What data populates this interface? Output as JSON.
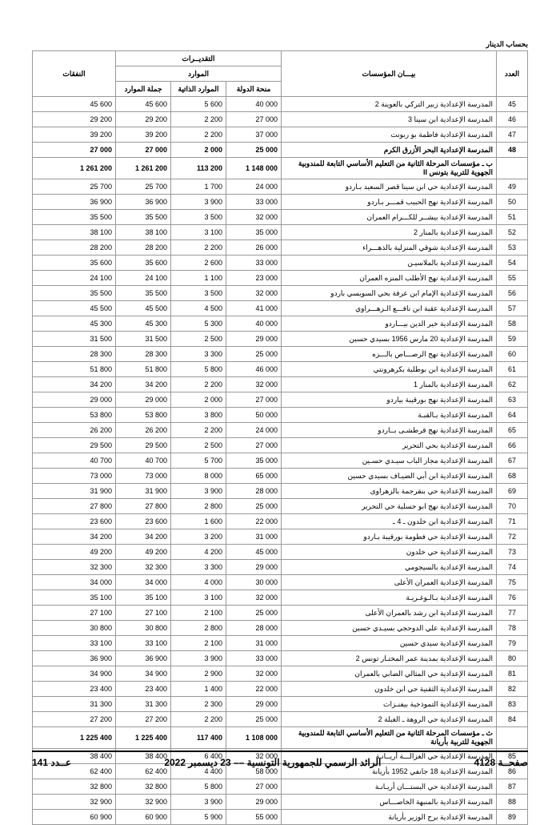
{
  "unitLabel": "بحساب الدينار",
  "headers": {
    "estimates": "التقديــرات",
    "expenses": "النفقات",
    "resources": "الموارد",
    "totalRes": "جملة الموارد",
    "selfRes": "الموارد الذاتية",
    "stateGrant": "منحة الدولة",
    "institutions": "بيـــان المؤسسات",
    "num": "العدد"
  },
  "rows": [
    {
      "n": "45",
      "d": "المدرسة الإعدادية زبير التركي بالعوينة 2",
      "s": "40 000",
      "r": "5 600",
      "t": "45 600",
      "e": "45 600"
    },
    {
      "n": "46",
      "d": "المدرسة الإعدادية ابن سينا 3",
      "s": "27 000",
      "r": "2 200",
      "t": "29 200",
      "e": "29 200"
    },
    {
      "n": "47",
      "d": "المدرسة الإعدادية فاطمة بو ربونت",
      "s": "37 000",
      "r": "2 200",
      "t": "39 200",
      "e": "39 200"
    },
    {
      "n": "48",
      "d": "المدرسة الإعدادية البحر الأزرق الكرم",
      "s": "25 000",
      "r": "2 000",
      "t": "27 000",
      "e": "27 000",
      "b": true
    },
    {
      "n": "",
      "d": "ب ـ مؤسسات المرحلة الثانية من التعليم الأساسي التابعة للمندوبية الجهوية للتربية بتونس II",
      "s": "1 148 000",
      "r": "113 200",
      "t": "1 261 200",
      "e": "1 261 200",
      "b": true
    },
    {
      "n": "49",
      "d": "المدرسة الإعدادية حي ابن سينا قصر السعيد بـاردو",
      "s": "24 000",
      "r": "1 700",
      "t": "25 700",
      "e": "25 700"
    },
    {
      "n": "50",
      "d": "المدرسة الإعدادية نهج الحبيب قمـــر بـاردو",
      "s": "33 000",
      "r": "3 900",
      "t": "36 900",
      "e": "36 900"
    },
    {
      "n": "51",
      "d": "المدرسة الإعدادية بيشــر للكـــرام العمران",
      "s": "32 000",
      "r": "3 500",
      "t": "35 500",
      "e": "35 500"
    },
    {
      "n": "52",
      "d": "المدرسة الإعدادية بالمنار 2",
      "s": "35 000",
      "r": "3 100",
      "t": "38 100",
      "e": "38 100"
    },
    {
      "n": "53",
      "d": "المدرسة الإعدادية شوقي المنزلية بالذهـــراء",
      "s": "26 000",
      "r": "2 200",
      "t": "28 200",
      "e": "28 200"
    },
    {
      "n": "54",
      "d": "المدرسة الإعدادية بالملاسيـن",
      "s": "33 000",
      "r": "2 600",
      "t": "35 600",
      "e": "35 600"
    },
    {
      "n": "55",
      "d": "المدرسة الإعدادية نهج الأطلب المنزه العمران",
      "s": "23 000",
      "r": "1 100",
      "t": "24 100",
      "e": "24 100"
    },
    {
      "n": "56",
      "d": "المدرسة الإعدادية الإمام ابن عرفة بحي السويسي باردو",
      "s": "32 000",
      "r": "3 500",
      "t": "35 500",
      "e": "35 500"
    },
    {
      "n": "57",
      "d": "المدرسة الإعدادية عقبة ابن نافـــع الـزهـــراوي",
      "s": "41 000",
      "r": "4 500",
      "t": "45 500",
      "e": "45 500"
    },
    {
      "n": "58",
      "d": "المدرسة الإعدادية خير الدين بيـــاردو",
      "s": "40 000",
      "r": "5 300",
      "t": "45 300",
      "e": "45 300"
    },
    {
      "n": "59",
      "d": "المدرسة الإعدادية 20 مارس 1956 بسيدي حسين",
      "s": "29 000",
      "r": "2 500",
      "t": "31 500",
      "e": "31 500"
    },
    {
      "n": "60",
      "d": "المدرسة الإعدادية نهج الرصـــاص بالـــزه",
      "s": "25 000",
      "r": "3 300",
      "t": "28 300",
      "e": "28 300"
    },
    {
      "n": "61",
      "d": "المدرسة الإعدادية ابن بوطلية بكرهرونتي",
      "s": "46 000",
      "r": "5 800",
      "t": "51 800",
      "e": "51 800"
    },
    {
      "n": "62",
      "d": "المدرسة الإعدادية بالمنار 1",
      "s": "32 000",
      "r": "2 200",
      "t": "34 200",
      "e": "34 200"
    },
    {
      "n": "63",
      "d": "المدرسة الإعدادية نهج بورقيبة بياردو",
      "s": "27 000",
      "r": "2 000",
      "t": "29 000",
      "e": "29 000"
    },
    {
      "n": "64",
      "d": "المدرسة الإعدادية بـالقبـة",
      "s": "50 000",
      "r": "3 800",
      "t": "53 800",
      "e": "53 800"
    },
    {
      "n": "65",
      "d": "المدرسة الإعدادية نهج قرطشـى بــاردو",
      "s": "24 000",
      "r": "2 200",
      "t": "26 200",
      "e": "26 200"
    },
    {
      "n": "66",
      "d": "المدرسة الإعدادية بحي التحرير",
      "s": "27 000",
      "r": "2 500",
      "t": "29 500",
      "e": "29 500"
    },
    {
      "n": "67",
      "d": "المدرسة الإعدادية مجاز الباب سيـدي حسـين",
      "s": "35 000",
      "r": "5 700",
      "t": "40 700",
      "e": "40 700"
    },
    {
      "n": "68",
      "d": "المدرسة الإعدادية ابن أبي الضيـاف بسيدي حسين",
      "s": "65 000",
      "r": "8 000",
      "t": "73 000",
      "e": "73 000"
    },
    {
      "n": "69",
      "d": "المدرسة الإعدادية حي بنقرجمة بالزهراوى",
      "s": "28 000",
      "r": "3 900",
      "t": "31 900",
      "e": "31 900"
    },
    {
      "n": "70",
      "d": "المدرسة الإعدادية نهج ابو حسلية حي التحرير",
      "s": "25 000",
      "r": "2 800",
      "t": "27 800",
      "e": "27 800"
    },
    {
      "n": "71",
      "d": "المدرسة الإعدادية ابن خلدون ـ 4 ـ",
      "s": "22 000",
      "r": "1 600",
      "t": "23 600",
      "e": "23 600"
    },
    {
      "n": "72",
      "d": "المدرسة الإعدادية حي فطومة بورقيبة بـاردو",
      "s": "31 000",
      "r": "3 200",
      "t": "34 200",
      "e": "34 200"
    },
    {
      "n": "73",
      "d": "المدرسة الإعدادية حي خلدون",
      "s": "45 000",
      "r": "4 200",
      "t": "49 200",
      "e": "49 200"
    },
    {
      "n": "74",
      "d": "المدرسة الإعدادية بالسيجومي",
      "s": "29 000",
      "r": "3 300",
      "t": "32 300",
      "e": "32 300"
    },
    {
      "n": "75",
      "d": "المدرسة الإعدادية العمران الأعلى",
      "s": "30 000",
      "r": "4 000",
      "t": "34 000",
      "e": "34 000"
    },
    {
      "n": "76",
      "d": "المدرسة الإعدادية بـالـوغـريـة",
      "s": "32 000",
      "r": "3 100",
      "t": "35 100",
      "e": "35 100"
    },
    {
      "n": "77",
      "d": "المدرسة الإعدادية ابن رشد بالعمران الأعلى",
      "s": "25 000",
      "r": "2 100",
      "t": "27 100",
      "e": "27 100"
    },
    {
      "n": "78",
      "d": "المدرسة الإعدادية علي الدوحجي بسيـدي حسين",
      "s": "28 000",
      "r": "2 800",
      "t": "30 800",
      "e": "30 800"
    },
    {
      "n": "79",
      "d": "المدرسة الإعدادية سيدي حسين",
      "s": "31 000",
      "r": "2 100",
      "t": "33 100",
      "e": "33 100"
    },
    {
      "n": "80",
      "d": "المدرسة الإعدادية بمدينة عمر المختـار تونس 2",
      "s": "33 000",
      "r": "3 900",
      "t": "36 900",
      "e": "36 900"
    },
    {
      "n": "81",
      "d": "المدرسة الإعدادية حي المثالي الضابي بالعمران",
      "s": "32 000",
      "r": "2 900",
      "t": "34 900",
      "e": "34 900"
    },
    {
      "n": "82",
      "d": "المدرسة الإعدادية الثقنية حي ابن خلدون",
      "s": "22 000",
      "r": "1 400",
      "t": "23 400",
      "e": "23 400"
    },
    {
      "n": "83",
      "d": "المدرسة الإعدادية التموذجية بيفنـزات",
      "s": "29 000",
      "r": "2 300",
      "t": "31 300",
      "e": "31 300"
    },
    {
      "n": "84",
      "d": "المدرسة الإعدادية حي الروهة ـ الغبلة 2",
      "s": "25 000",
      "r": "2 200",
      "t": "27 200",
      "e": "27 200"
    },
    {
      "n": "",
      "d": "ث ـ مؤسسات المرحلة الثانية من التعليم الأساسي التابعة للمندوبية الجهوية للتربية بأريانة",
      "s": "1 108 000",
      "r": "117 400",
      "t": "1 225 400",
      "e": "1 225 400",
      "b": true
    },
    {
      "n": "85",
      "d": "المدرسة الإعدادية حي الغزالـــة أريــانـة",
      "s": "32 000",
      "r": "6 400",
      "t": "38 400",
      "e": "38 400"
    },
    {
      "n": "86",
      "d": "المدرسة الإعدادية 18 جانفي 1952 بأريانة",
      "s": "58 000",
      "r": "4 400",
      "t": "62 400",
      "e": "62 400"
    },
    {
      "n": "87",
      "d": "المدرسة الإعدادية حي البستـــان أريـانـة",
      "s": "27 000",
      "r": "5 800",
      "t": "32 800",
      "e": "32 800"
    },
    {
      "n": "88",
      "d": "المدرسة الإعدادية بالمنبهة الخاصـــاس",
      "s": "29 000",
      "r": "3 900",
      "t": "32 900",
      "e": "32 900"
    },
    {
      "n": "89",
      "d": "المدرسة الإعدادية برج الوزير بأريانة",
      "s": "55 000",
      "r": "5 900",
      "t": "60 900",
      "e": "60 900"
    }
  ],
  "footer": {
    "pageLabel": "صفحــة",
    "pageNum": "4128",
    "center": "الرائد الرسمي للجمهورية التونسية –– 23 ديسمبر 2022",
    "issueLabel": "عــدد",
    "issueNum": "141"
  }
}
